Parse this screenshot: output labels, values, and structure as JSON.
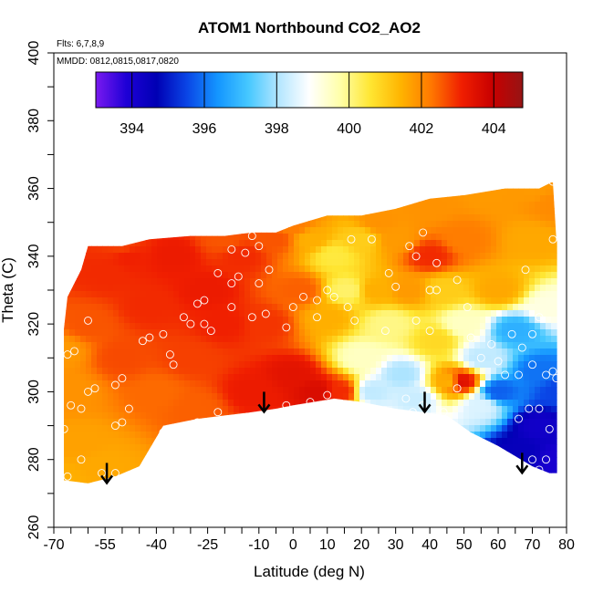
{
  "chart_data": {
    "type": "heatmap",
    "title": "ATOM1 Northbound CO2_AO2",
    "xlabel": "Latitude (deg N)",
    "ylabel": "Theta (C)",
    "xlim": [
      -70,
      80
    ],
    "ylim": [
      260,
      400
    ],
    "x_ticks": [
      -70,
      -55,
      -40,
      -25,
      -10,
      0,
      10,
      20,
      30,
      40,
      50,
      60,
      70,
      80
    ],
    "y_ticks": [
      260,
      280,
      300,
      320,
      340,
      360,
      380,
      400
    ],
    "annotations": {
      "flights": "Flts: 6,7,8,9",
      "dates": "MMDD: 0812,0815,0817,0820"
    },
    "colorbar": {
      "min": 393,
      "max": 404.8,
      "ticks": [
        394,
        396,
        398,
        400,
        402,
        404
      ],
      "colors": [
        "#7a1af0",
        "#1e00d6",
        "#0000b4",
        "#0a46e6",
        "#1496ff",
        "#46c8ff",
        "#b4e6ff",
        "#ffffff",
        "#ffffaa",
        "#ffe632",
        "#ffb400",
        "#ff7800",
        "#f01e00",
        "#c80000",
        "#961414"
      ]
    },
    "upper_boundary": [
      [
        -68,
        310
      ],
      [
        -66,
        328
      ],
      [
        -62,
        336
      ],
      [
        -60,
        343
      ],
      [
        -50,
        343
      ],
      [
        -42,
        345
      ],
      [
        -30,
        346
      ],
      [
        -20,
        346
      ],
      [
        -12,
        347
      ],
      [
        -5,
        347
      ],
      [
        0,
        349
      ],
      [
        10,
        352
      ],
      [
        20,
        352
      ],
      [
        30,
        354
      ],
      [
        40,
        357
      ],
      [
        50,
        358
      ],
      [
        62,
        360
      ],
      [
        72,
        360
      ],
      [
        76,
        362
      ],
      [
        77,
        345
      ],
      [
        80,
        335
      ],
      [
        80,
        320
      ],
      [
        81,
        310
      ]
    ],
    "lower_boundary": [
      [
        81,
        276
      ],
      [
        75,
        276
      ],
      [
        70,
        278
      ],
      [
        60,
        284
      ],
      [
        52,
        288
      ],
      [
        45,
        293
      ],
      [
        38,
        294
      ],
      [
        30,
        295
      ],
      [
        20,
        297
      ],
      [
        12,
        298
      ],
      [
        6,
        297
      ],
      [
        0,
        296
      ],
      [
        -5,
        295
      ],
      [
        -12,
        294
      ],
      [
        -20,
        293
      ],
      [
        -28,
        292
      ],
      [
        -38,
        290
      ],
      [
        -45,
        278
      ],
      [
        -52,
        275
      ],
      [
        -60,
        273
      ],
      [
        -68,
        274
      ]
    ],
    "field_anchors": [
      [
        -68,
        274,
        401.5
      ],
      [
        -62,
        285,
        401.7
      ],
      [
        -56,
        278,
        401.6
      ],
      [
        -65,
        300,
        401.9
      ],
      [
        -68,
        312,
        401.8
      ],
      [
        -60,
        320,
        402.6
      ],
      [
        -55,
        335,
        403.0
      ],
      [
        -48,
        340,
        403.1
      ],
      [
        -50,
        310,
        402.7
      ],
      [
        -40,
        300,
        402.4
      ],
      [
        -42,
        325,
        403.0
      ],
      [
        -35,
        340,
        403.2
      ],
      [
        -30,
        310,
        402.8
      ],
      [
        -28,
        295,
        402.5
      ],
      [
        -25,
        330,
        403.2
      ],
      [
        -20,
        320,
        403.1
      ],
      [
        -15,
        340,
        403.0
      ],
      [
        -12,
        300,
        403.2
      ],
      [
        -8,
        320,
        402.9
      ],
      [
        -5,
        345,
        402.6
      ],
      [
        0,
        305,
        403.4
      ],
      [
        2,
        330,
        402.5
      ],
      [
        5,
        345,
        401.5
      ],
      [
        7,
        300,
        403.6
      ],
      [
        10,
        322,
        401.5
      ],
      [
        12,
        340,
        400.5
      ],
      [
        14,
        300,
        403.0
      ],
      [
        16,
        330,
        400.2
      ],
      [
        20,
        310,
        399.5
      ],
      [
        20,
        345,
        401.0
      ],
      [
        23,
        300,
        398.2
      ],
      [
        24,
        330,
        401.5
      ],
      [
        28,
        320,
        400.0
      ],
      [
        30,
        345,
        401.8
      ],
      [
        32,
        305,
        398.0
      ],
      [
        34,
        330,
        401.8
      ],
      [
        36,
        298,
        398.3
      ],
      [
        40,
        340,
        403.0
      ],
      [
        42,
        315,
        400.8
      ],
      [
        44,
        330,
        401.0
      ],
      [
        46,
        303,
        401.5
      ],
      [
        49,
        303,
        403.5
      ],
      [
        50,
        320,
        399.5
      ],
      [
        50,
        345,
        402.2
      ],
      [
        55,
        310,
        398.2
      ],
      [
        55,
        296,
        398.5
      ],
      [
        60,
        330,
        401.6
      ],
      [
        60,
        300,
        395.8
      ],
      [
        65,
        318,
        396.8
      ],
      [
        66,
        282,
        394.5
      ],
      [
        70,
        345,
        401.6
      ],
      [
        72,
        306,
        396.0
      ],
      [
        72,
        290,
        394.2
      ],
      [
        75,
        325,
        399.2
      ],
      [
        78,
        300,
        395.5
      ],
      [
        78,
        280,
        394.0
      ],
      [
        76,
        355,
        402.0
      ],
      [
        70,
        360,
        401.8
      ],
      [
        58,
        358,
        401.8
      ],
      [
        40,
        355,
        401.9
      ],
      [
        25,
        350,
        401.9
      ],
      [
        0,
        349,
        402.2
      ],
      [
        -20,
        345,
        402.6
      ],
      [
        -50,
        343,
        402.8
      ]
    ],
    "sample_points": [
      [
        -66,
        275
      ],
      [
        -62,
        280
      ],
      [
        -56,
        276
      ],
      [
        -52,
        276
      ],
      [
        -67,
        289
      ],
      [
        -65,
        296
      ],
      [
        -62,
        295
      ],
      [
        -60,
        300
      ],
      [
        -58,
        301
      ],
      [
        -66,
        311
      ],
      [
        -64,
        312
      ],
      [
        -60,
        321
      ],
      [
        -52,
        302
      ],
      [
        -50,
        304
      ],
      [
        -48,
        295
      ],
      [
        -50,
        291
      ],
      [
        -52,
        290
      ],
      [
        -44,
        315
      ],
      [
        -42,
        316
      ],
      [
        -38,
        317
      ],
      [
        -36,
        311
      ],
      [
        -35,
        308
      ],
      [
        -38,
        288
      ],
      [
        -28,
        291
      ],
      [
        -22,
        294
      ],
      [
        -32,
        322
      ],
      [
        -30,
        320
      ],
      [
        -26,
        320
      ],
      [
        -24,
        318
      ],
      [
        -28,
        326
      ],
      [
        -26,
        327
      ],
      [
        -22,
        335
      ],
      [
        -18,
        342
      ],
      [
        -14,
        341
      ],
      [
        -12,
        346
      ],
      [
        -10,
        343
      ],
      [
        -7,
        336
      ],
      [
        -18,
        332
      ],
      [
        -16,
        334
      ],
      [
        -10,
        332
      ],
      [
        -8,
        323
      ],
      [
        -12,
        322
      ],
      [
        -18,
        325
      ],
      [
        -2,
        319
      ],
      [
        0,
        325
      ],
      [
        3,
        328
      ],
      [
        7,
        327
      ],
      [
        -2,
        296
      ],
      [
        5,
        297
      ],
      [
        10,
        299
      ],
      [
        7,
        322
      ],
      [
        10,
        330
      ],
      [
        12,
        328
      ],
      [
        16,
        325
      ],
      [
        18,
        321
      ],
      [
        17,
        345
      ],
      [
        23,
        345
      ],
      [
        28,
        335
      ],
      [
        30,
        331
      ],
      [
        27,
        318
      ],
      [
        34,
        343
      ],
      [
        36,
        340
      ],
      [
        38,
        347
      ],
      [
        36,
        321
      ],
      [
        40,
        318
      ],
      [
        40,
        330
      ],
      [
        42,
        330
      ],
      [
        42,
        338
      ],
      [
        33,
        298
      ],
      [
        38,
        296
      ],
      [
        35,
        294
      ],
      [
        44,
        294
      ],
      [
        48,
        301
      ],
      [
        48,
        333
      ],
      [
        51,
        325
      ],
      [
        52,
        316
      ],
      [
        55,
        310
      ],
      [
        58,
        314
      ],
      [
        60,
        309
      ],
      [
        62,
        305
      ],
      [
        66,
        305
      ],
      [
        64,
        317
      ],
      [
        67,
        313
      ],
      [
        70,
        317
      ],
      [
        72,
        322
      ],
      [
        70,
        308
      ],
      [
        74,
        305
      ],
      [
        76,
        306
      ],
      [
        77,
        304
      ],
      [
        69,
        295
      ],
      [
        66,
        292
      ],
      [
        72,
        295
      ],
      [
        75,
        289
      ],
      [
        70,
        280
      ],
      [
        74,
        280
      ],
      [
        72,
        277
      ],
      [
        80,
        277
      ],
      [
        68,
        336
      ],
      [
        76,
        345
      ],
      [
        76,
        362
      ]
    ],
    "arrows": [
      [
        -54.5,
        279
      ],
      [
        -8.5,
        300
      ],
      [
        38.5,
        300
      ],
      [
        67,
        282
      ]
    ]
  }
}
